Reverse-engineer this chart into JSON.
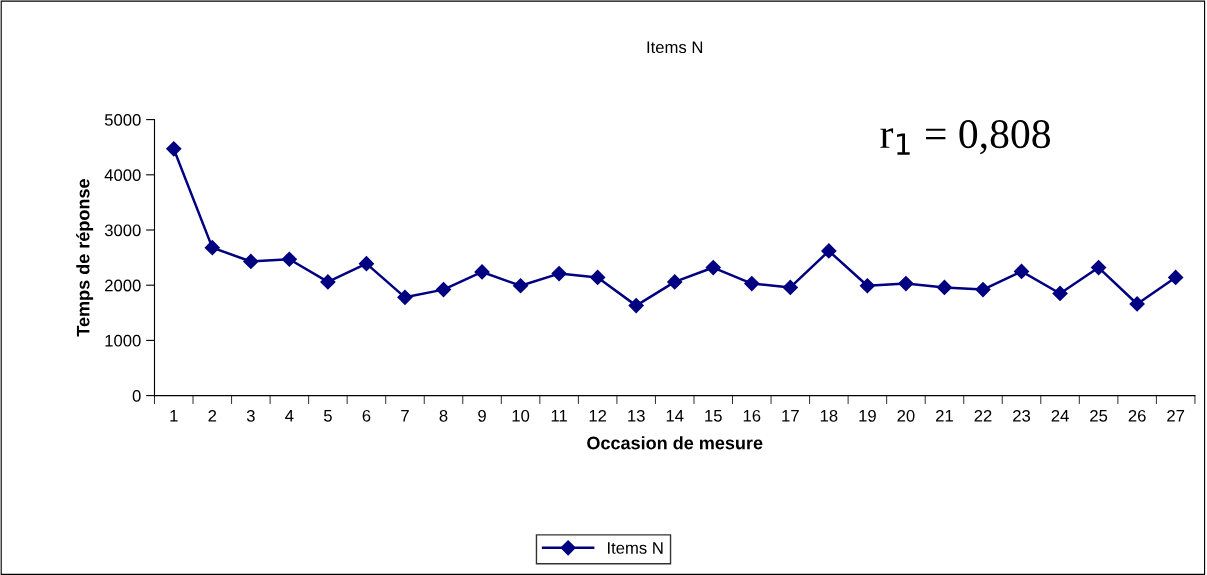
{
  "chart_data": {
    "type": "line",
    "title": "Items N",
    "xlabel": "Occasion de mesure",
    "ylabel": "Temps de réponse",
    "categories": [
      "1",
      "2",
      "3",
      "4",
      "5",
      "6",
      "7",
      "8",
      "9",
      "10",
      "11",
      "12",
      "13",
      "14",
      "15",
      "16",
      "17",
      "18",
      "19",
      "20",
      "21",
      "22",
      "23",
      "24",
      "25",
      "26",
      "27"
    ],
    "series": [
      {
        "name": "Items N",
        "color": "#000080",
        "values": [
          4470,
          2680,
          2430,
          2470,
          2060,
          2390,
          1780,
          1920,
          2240,
          1990,
          2210,
          2140,
          1630,
          2060,
          2320,
          2030,
          1960,
          2620,
          1990,
          2030,
          1960,
          1920,
          2250,
          1850,
          2320,
          1660,
          2140
        ]
      }
    ],
    "ylim": [
      0,
      5000
    ],
    "yticks": [
      0,
      1000,
      2000,
      3000,
      4000,
      5000
    ],
    "grid": false,
    "legend": "bottom",
    "marker": "diamond",
    "line_style": "solid",
    "annotations": [
      "r$_{1}$ = 0,808"
    ]
  }
}
